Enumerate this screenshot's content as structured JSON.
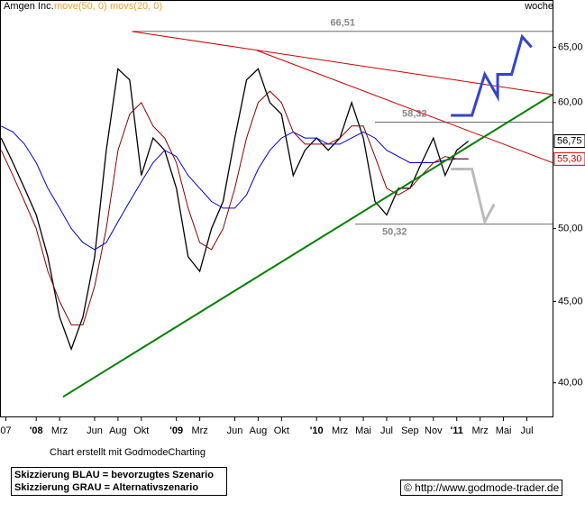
{
  "chart_data": {
    "type": "line",
    "title": "Amgen Inc.",
    "period": "woche",
    "indicators": [
      {
        "label": "move(50, 0)",
        "color": "#f0a030"
      },
      {
        "label": "movs(20, 0)",
        "color": "#f0a030"
      }
    ],
    "log_scale": true,
    "xlim": [
      -3.1,
      44.2
    ],
    "xticks": [
      {
        "value": -2.6,
        "label": "07"
      },
      {
        "value": 0,
        "label": "'08"
      },
      {
        "value": 2,
        "label": "Mrz"
      },
      {
        "value": 5,
        "label": "Jun"
      },
      {
        "value": 7,
        "label": "Aug"
      },
      {
        "value": 9,
        "label": "Okt"
      },
      {
        "value": 12,
        "label": "'09"
      },
      {
        "value": 14,
        "label": "Mrz"
      },
      {
        "value": 17,
        "label": "Jun"
      },
      {
        "value": 19,
        "label": "Aug"
      },
      {
        "value": 21,
        "label": "Okt"
      },
      {
        "value": 24,
        "label": "'10"
      },
      {
        "value": 26,
        "label": "Mrz"
      },
      {
        "value": 28,
        "label": "Mai"
      },
      {
        "value": 30,
        "label": "Jul"
      },
      {
        "value": 32,
        "label": "Sep"
      },
      {
        "value": 34,
        "label": "Nov"
      },
      {
        "value": 36,
        "label": "'11"
      },
      {
        "value": 38,
        "label": "Mrz"
      },
      {
        "value": 40,
        "label": "Mai"
      },
      {
        "value": 42,
        "label": "Jul"
      }
    ],
    "ylim": [
      38.1,
      69.6
    ],
    "yticks": [
      {
        "value": 40,
        "label": "40,00"
      },
      {
        "value": 45,
        "label": "45,00"
      },
      {
        "value": 50,
        "label": "50,00"
      },
      {
        "value": 60,
        "label": "60,00"
      },
      {
        "value": 65,
        "label": "65,00"
      }
    ],
    "x": [
      -3,
      -2,
      -1,
      0,
      1,
      2,
      3,
      4,
      5,
      6,
      7,
      8,
      9,
      10,
      11,
      12,
      13,
      14,
      15,
      16,
      17,
      18,
      19,
      20,
      21,
      22,
      23,
      24,
      25,
      26,
      27,
      28,
      29,
      30,
      31,
      32,
      33,
      34,
      35,
      36,
      37
    ],
    "series": [
      {
        "color": "#000000",
        "width": 1.3,
        "values": [
          57,
          55,
          53,
          51,
          48,
          44,
          42,
          44,
          48,
          56,
          63,
          62,
          54,
          57,
          56,
          53,
          48,
          47,
          50,
          52,
          57,
          62,
          63,
          60,
          59,
          54,
          56,
          57,
          56,
          57,
          60,
          57,
          52,
          51,
          53,
          53,
          55,
          57,
          54,
          56,
          56.75
        ]
      },
      {
        "color": "#0000cc",
        "width": 1,
        "values": [
          58,
          57.5,
          56.5,
          55,
          53,
          51.5,
          50,
          49,
          48.5,
          49,
          50.5,
          52,
          53.5,
          55,
          56,
          55.5,
          54,
          53,
          52,
          51.5,
          51.5,
          52.5,
          54.5,
          56,
          57,
          57.5,
          57,
          57,
          56.5,
          56.5,
          57,
          57.5,
          57,
          56,
          55.5,
          55,
          55,
          55,
          55.2,
          55.3,
          55.3
        ]
      },
      {
        "color": "#8b0000",
        "width": 1,
        "values": [
          56,
          54,
          52,
          50,
          47,
          45,
          43.5,
          43.5,
          46,
          50,
          56,
          59,
          60,
          58,
          57,
          55,
          51.5,
          49,
          48.5,
          50,
          53,
          57,
          60,
          61,
          60,
          57.5,
          56.5,
          56.5,
          56.5,
          57,
          58,
          58,
          55.5,
          53,
          52.5,
          53,
          54,
          55,
          55.5,
          55.3,
          55.3
        ]
      }
    ],
    "scenarios": [
      {
        "color": "#3344cc",
        "x": [
          35.5,
          37.3,
          38.4,
          39.5,
          39.5,
          40.7,
          41.6,
          42.4
        ],
        "values": [
          58.9,
          58.9,
          62.5,
          60.5,
          62.5,
          62.5,
          66,
          65
        ]
      },
      {
        "color": "#bbbbbb",
        "x": [
          35.5,
          37.3,
          38.4,
          39.2
        ],
        "values": [
          54.5,
          54.5,
          50.5,
          51.8
        ]
      }
    ],
    "trendlines": [
      {
        "color": "#cc0000",
        "x": [
          8.2,
          44.2
        ],
        "values": [
          66.5,
          60.7
        ]
      },
      {
        "color": "#cc0000",
        "x": [
          18.9,
          44.2
        ],
        "values": [
          64.7,
          55
        ]
      },
      {
        "color": "#008000",
        "x": [
          2.3,
          44.2
        ],
        "values": [
          39.2,
          60.7
        ]
      }
    ],
    "levels": [
      {
        "value": 66.51,
        "label": "66,51",
        "x": [
          8.2,
          44.2
        ]
      },
      {
        "value": 58.32,
        "label": "58,32",
        "x": [
          29,
          44.2
        ]
      },
      {
        "value": 50.32,
        "label": "50,32",
        "x": [
          27.3,
          44.2
        ]
      }
    ],
    "price_tags": [
      {
        "value": 56.75,
        "label": "56,75",
        "color": "#000000"
      },
      {
        "value": 55.3,
        "label": "55,30",
        "color": "#cc0000"
      }
    ]
  },
  "footer": {
    "credit": "Chart erstellt mit GodmodeCharting",
    "legend_blue": "Skizzierung BLAU = bevorzugtes Szenario",
    "legend_gray": "Skizzierung GRAU = Alternativszenario",
    "url": "© http://www.godmode-trader.de"
  }
}
